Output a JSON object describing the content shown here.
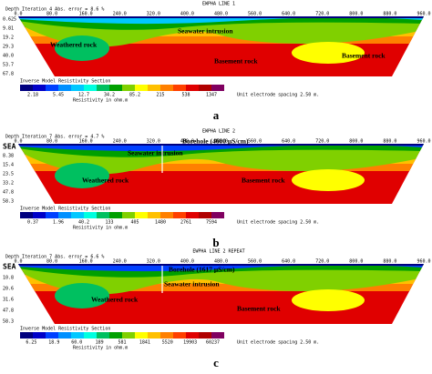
{
  "panels": [
    {
      "title": "EWPHA LINE 1",
      "header": "Depth  Iteration 4 Abs. error = 8.6 %",
      "xlabels": [
        "0.0",
        "80.0",
        "160.0",
        "240.0",
        "320.0",
        "400.0",
        "480.0",
        "560.0",
        "640.0",
        "720.0",
        "800.0",
        "880.0",
        "960.0"
      ],
      "depths": [
        "0.625",
        "9.81",
        "19.2",
        "29.3",
        "40.0",
        "53.7",
        "67.8"
      ],
      "annotations": [
        "Weathered rock",
        "Seawater intrusion",
        "Basement rock",
        "Basement rock"
      ],
      "legend_title": "Inverse Model Resistivity Section",
      "legend_values": [
        "2.18",
        "5.45",
        "12.7",
        "34.2",
        "85.2",
        "215",
        "538",
        "1347"
      ],
      "unit_label": "Resistivity in ohm.m",
      "spacing": "Unit electrode spacing 2.50 m.",
      "caption": "a"
    },
    {
      "title": "EWPHA LINE 2",
      "header": "Depth  Iteration 7 Abs. error = 4.7 %",
      "xlabels": [
        "0.0",
        "80.0",
        "160.0",
        "240.0",
        "320.0",
        "400.0",
        "480.0",
        "560.0",
        "640.0",
        "720.0",
        "800.0",
        "880.0",
        "960.0"
      ],
      "depths": [
        "SEA",
        "8.38",
        "15.4",
        "23.5",
        "33.2",
        "47.8",
        "58.3"
      ],
      "annotations": [
        "Borehole (4600 µS/cm)",
        "Seawater intrusion",
        "Weathered rock",
        "Basement rock"
      ],
      "legend_title": "Inverse Model Resistivity Section",
      "legend_values": [
        "0.37",
        "1.96",
        "40.2",
        "133",
        "405",
        "1480",
        "2761",
        "7594"
      ],
      "unit_label": "Resistivity in ohm.m",
      "spacing": "Unit electrode spacing 2.50 m.",
      "caption": "b"
    },
    {
      "title": "EWPHA LINE 2 REPEAT",
      "header": "Depth  Iteration 7 Abs. error = 6.6 %",
      "xlabels": [
        "0.0",
        "80.0",
        "160.0",
        "240.0",
        "320.0",
        "400.0",
        "480.0",
        "560.0",
        "640.0",
        "720.0",
        "800.0",
        "880.0",
        "960.0"
      ],
      "depths": [
        "SEA",
        "10.8",
        "20.6",
        "31.6",
        "47.8",
        "58.3"
      ],
      "annotations": [
        "Borehole (1617 µS/cm)",
        "Seawater intrusion",
        "Weathered rock",
        "Basement rock"
      ],
      "legend_title": "Inverse Model Resistivity Section",
      "legend_values": [
        "6.25",
        "18.9",
        "60.0",
        "189",
        "581",
        "1841",
        "5520",
        "19903",
        "60237"
      ],
      "unit_label": "Resistivity in ohm.m",
      "spacing": "Unit electrode spacing 2.50 m.",
      "caption": "c"
    }
  ]
}
